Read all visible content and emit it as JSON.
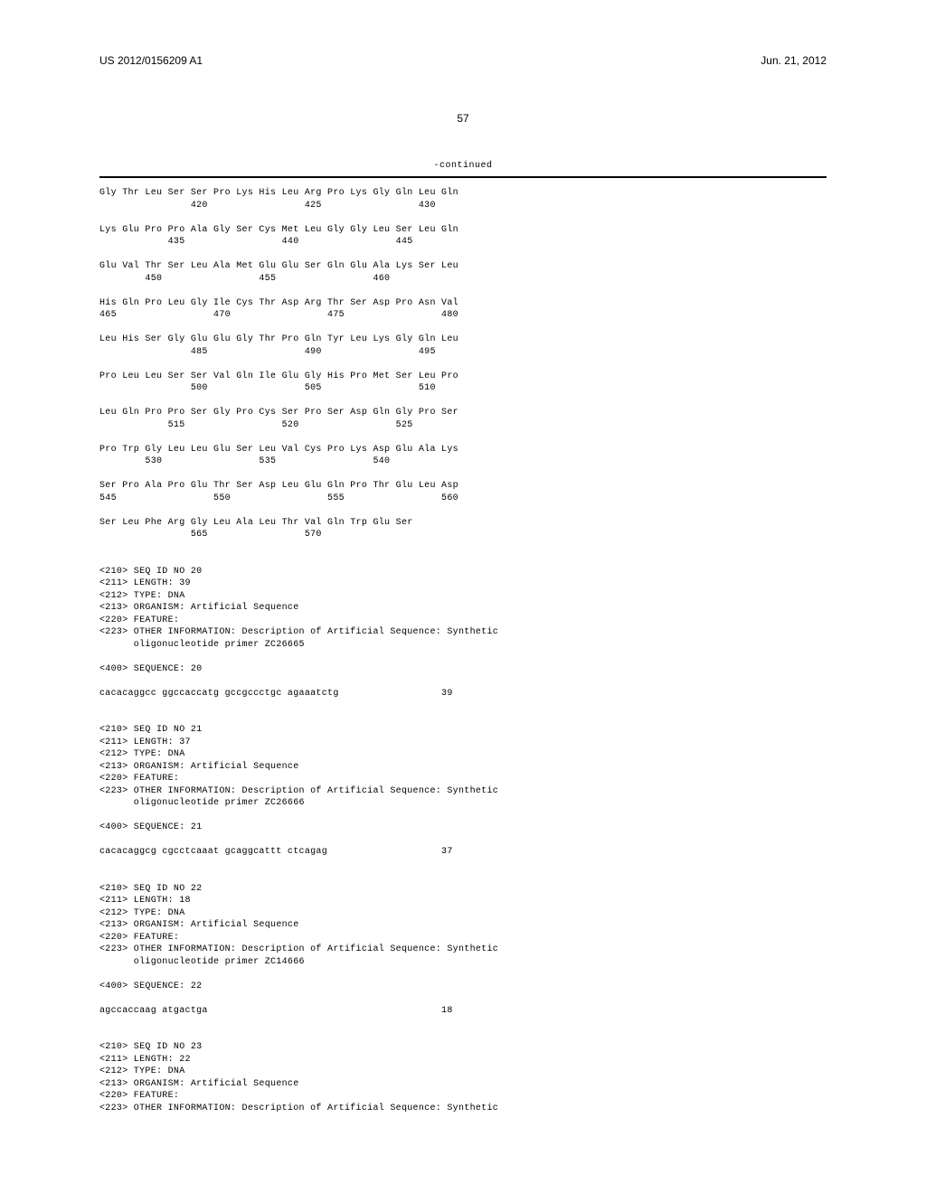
{
  "header": {
    "pub_no": "US 2012/0156209 A1",
    "pub_date": "Jun. 21, 2012",
    "page_number": "57",
    "continued": "-continued"
  },
  "protein_rows": [
    {
      "seq": "Gly Thr Leu Ser Ser Pro Lys His Leu Arg Pro Lys Gly Gln Leu Gln",
      "nums": "                420                 425                 430"
    },
    {
      "seq": "Lys Glu Pro Pro Ala Gly Ser Cys Met Leu Gly Gly Leu Ser Leu Gln",
      "nums": "            435                 440                 445"
    },
    {
      "seq": "Glu Val Thr Ser Leu Ala Met Glu Glu Ser Gln Glu Ala Lys Ser Leu",
      "nums": "        450                 455                 460"
    },
    {
      "seq": "His Gln Pro Leu Gly Ile Cys Thr Asp Arg Thr Ser Asp Pro Asn Val",
      "nums": "465                 470                 475                 480"
    },
    {
      "seq": "Leu His Ser Gly Glu Glu Gly Thr Pro Gln Tyr Leu Lys Gly Gln Leu",
      "nums": "                485                 490                 495"
    },
    {
      "seq": "Pro Leu Leu Ser Ser Val Gln Ile Glu Gly His Pro Met Ser Leu Pro",
      "nums": "                500                 505                 510"
    },
    {
      "seq": "Leu Gln Pro Pro Ser Gly Pro Cys Ser Pro Ser Asp Gln Gly Pro Ser",
      "nums": "            515                 520                 525"
    },
    {
      "seq": "Pro Trp Gly Leu Leu Glu Ser Leu Val Cys Pro Lys Asp Glu Ala Lys",
      "nums": "        530                 535                 540"
    },
    {
      "seq": "Ser Pro Ala Pro Glu Thr Ser Asp Leu Glu Gln Pro Thr Glu Leu Asp",
      "nums": "545                 550                 555                 560"
    },
    {
      "seq": "Ser Leu Phe Arg Gly Leu Ala Leu Thr Val Gln Trp Glu Ser",
      "nums": "                565                 570"
    }
  ],
  "seqs": [
    {
      "lines": [
        "<210> SEQ ID NO 20",
        "<211> LENGTH: 39",
        "<212> TYPE: DNA",
        "<213> ORGANISM: Artificial Sequence",
        "<220> FEATURE:",
        "<223> OTHER INFORMATION: Description of Artificial Sequence: Synthetic",
        "      oligonucleotide primer ZC26665"
      ],
      "seq_label": "<400> SEQUENCE: 20",
      "dna": "cacacaggcc ggccaccatg gccgccctgc agaaatctg",
      "len": "39"
    },
    {
      "lines": [
        "<210> SEQ ID NO 21",
        "<211> LENGTH: 37",
        "<212> TYPE: DNA",
        "<213> ORGANISM: Artificial Sequence",
        "<220> FEATURE:",
        "<223> OTHER INFORMATION: Description of Artificial Sequence: Synthetic",
        "      oligonucleotide primer ZC26666"
      ],
      "seq_label": "<400> SEQUENCE: 21",
      "dna": "cacacaggcg cgcctcaaat gcaggcattt ctcagag",
      "len": "37"
    },
    {
      "lines": [
        "<210> SEQ ID NO 22",
        "<211> LENGTH: 18",
        "<212> TYPE: DNA",
        "<213> ORGANISM: Artificial Sequence",
        "<220> FEATURE:",
        "<223> OTHER INFORMATION: Description of Artificial Sequence: Synthetic",
        "      oligonucleotide primer ZC14666"
      ],
      "seq_label": "<400> SEQUENCE: 22",
      "dna": "agccaccaag atgactga",
      "len": "18"
    },
    {
      "lines": [
        "<210> SEQ ID NO 23",
        "<211> LENGTH: 22",
        "<212> TYPE: DNA",
        "<213> ORGANISM: Artificial Sequence",
        "<220> FEATURE:",
        "<223> OTHER INFORMATION: Description of Artificial Sequence: Synthetic"
      ],
      "seq_label": "",
      "dna": "",
      "len": ""
    }
  ],
  "layout": {
    "dna_col_width": 60
  }
}
